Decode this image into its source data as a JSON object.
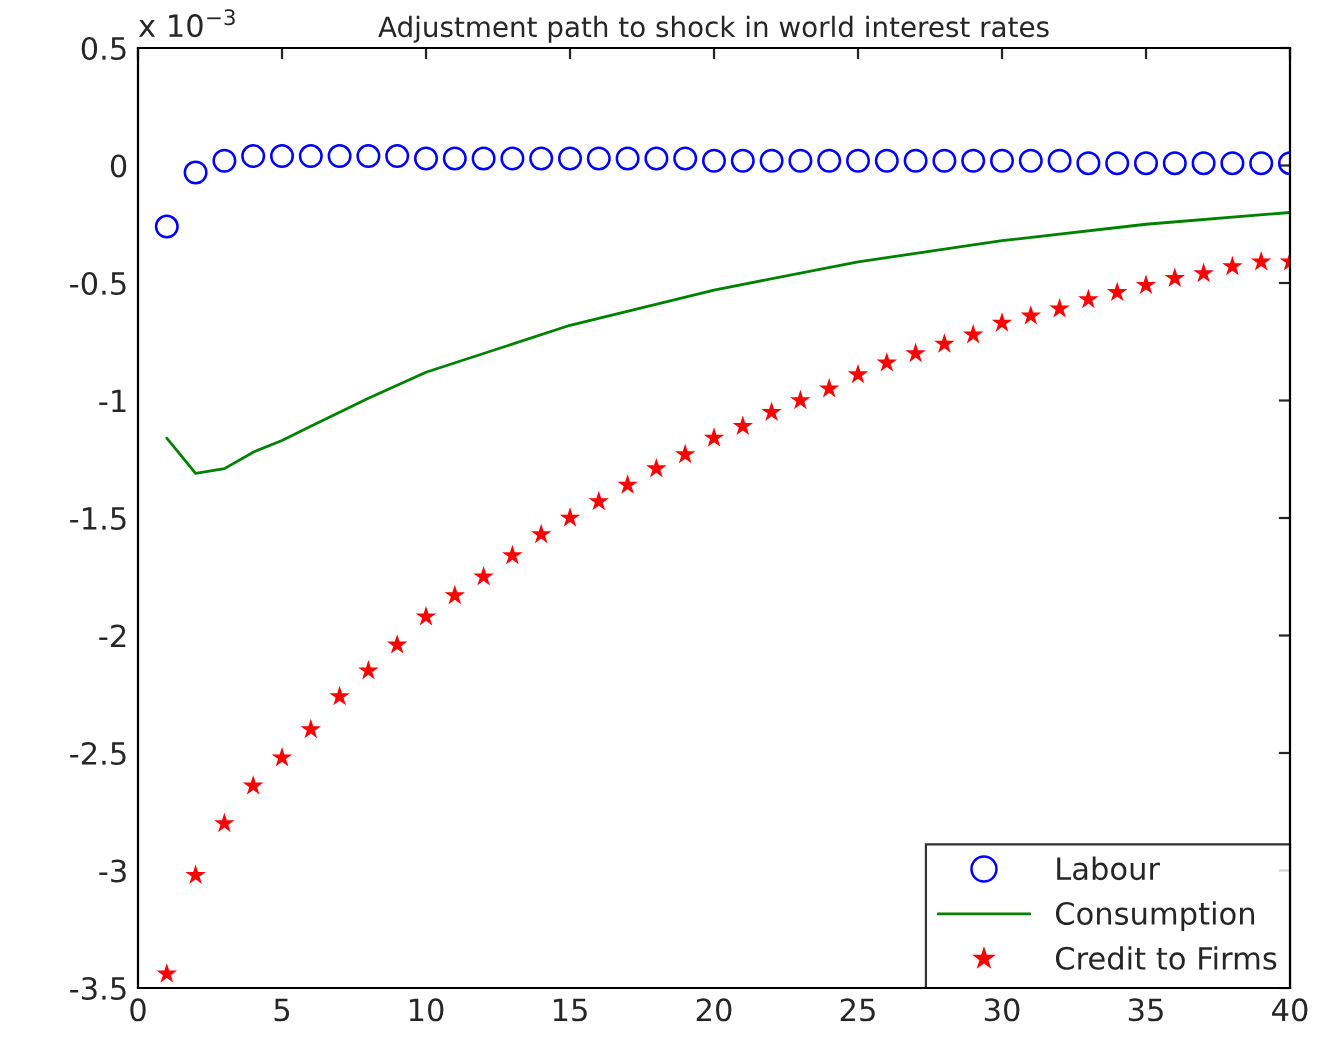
{
  "chart_data": {
    "type": "scatter",
    "title": "Adjustment path to shock in world interest rates",
    "annotations": [
      "x 10$^{−3}$"
    ],
    "xlim": [
      0,
      40
    ],
    "xticks": [
      0,
      5,
      10,
      15,
      20,
      25,
      30,
      35,
      40
    ],
    "ylim": [
      -3.5,
      0.5
    ],
    "yticks": [
      -3.5,
      -3,
      -2.5,
      -2,
      -1.5,
      -1,
      -0.5,
      0,
      0.5
    ],
    "grid": false,
    "legend": "bottom right",
    "series": [
      {
        "name": "Labour",
        "marker": "circle",
        "color": "#0000ff",
        "x": [
          1,
          2,
          3,
          4,
          5,
          6,
          7,
          8,
          9,
          10,
          11,
          12,
          13,
          14,
          15,
          16,
          17,
          18,
          19,
          20,
          21,
          22,
          23,
          24,
          25,
          26,
          27,
          28,
          29,
          30,
          31,
          32,
          33,
          34,
          35,
          36,
          37,
          38,
          39,
          40
        ],
        "values": [
          -0.26,
          -0.03,
          0.02,
          0.04,
          0.04,
          0.04,
          0.04,
          0.04,
          0.04,
          0.03,
          0.03,
          0.03,
          0.03,
          0.03,
          0.03,
          0.03,
          0.03,
          0.03,
          0.03,
          0.02,
          0.02,
          0.02,
          0.02,
          0.02,
          0.02,
          0.02,
          0.02,
          0.02,
          0.02,
          0.02,
          0.02,
          0.02,
          0.01,
          0.01,
          0.01,
          0.01,
          0.01,
          0.01,
          0.01,
          0.01
        ]
      },
      {
        "name": "Consumption",
        "type": "line",
        "marker": "none",
        "color": "#008000",
        "x": [
          1,
          2,
          3,
          4,
          5,
          6,
          7,
          8,
          10,
          15,
          20,
          25,
          30,
          35,
          40
        ],
        "values": [
          -1.16,
          -1.31,
          -1.29,
          -1.22,
          -1.17,
          -1.11,
          -1.05,
          -0.99,
          -0.88,
          -0.68,
          -0.53,
          -0.41,
          -0.32,
          -0.25,
          -0.2
        ]
      },
      {
        "name": "Credit to Firms",
        "marker": "star",
        "color": "#ff0000",
        "x": [
          1,
          2,
          3,
          4,
          5,
          6,
          7,
          8,
          9,
          10,
          11,
          12,
          13,
          14,
          15,
          16,
          17,
          18,
          19,
          20,
          21,
          22,
          23,
          24,
          25,
          26,
          27,
          28,
          29,
          30,
          31,
          32,
          33,
          34,
          35,
          36,
          37,
          38,
          39,
          40
        ],
        "values": [
          -3.44,
          -3.02,
          -2.8,
          -2.64,
          -2.52,
          -2.4,
          -2.26,
          -2.15,
          -2.04,
          -1.92,
          -1.83,
          -1.75,
          -1.66,
          -1.57,
          -1.5,
          -1.43,
          -1.36,
          -1.29,
          -1.23,
          -1.16,
          -1.11,
          -1.05,
          -1.0,
          -0.95,
          -0.89,
          -0.84,
          -0.8,
          -0.76,
          -0.72,
          -0.67,
          -0.64,
          -0.61,
          -0.57,
          -0.54,
          -0.51,
          -0.48,
          -0.46,
          -0.43,
          -0.41,
          -0.41
        ]
      }
    ]
  }
}
